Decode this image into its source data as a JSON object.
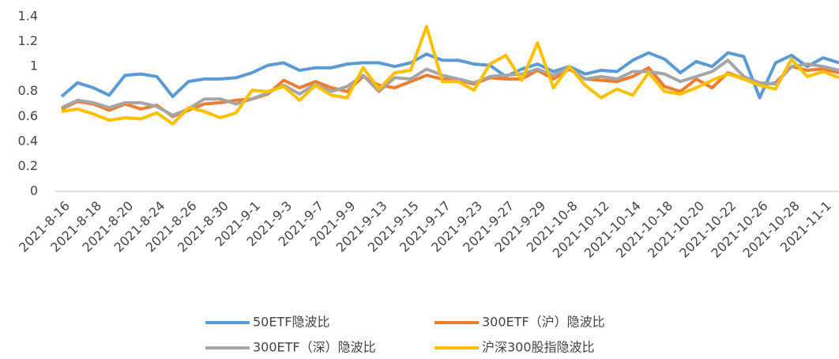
{
  "chart_data": {
    "type": "line",
    "categories": [
      "2021-8-16",
      null,
      "2021-8-18",
      null,
      "2021-8-20",
      null,
      "2021-8-24",
      null,
      "2021-8-26",
      null,
      "2021-8-30",
      null,
      "2021-9-1",
      null,
      "2021-9-3",
      null,
      "2021-9-7",
      null,
      "2021-9-9",
      null,
      "2021-9-13",
      null,
      "2021-9-15",
      null,
      "2021-9-17",
      null,
      "2021-9-23",
      null,
      "2021-9-27",
      null,
      "2021-9-29",
      null,
      "2021-10-8",
      null,
      "2021-10-12",
      null,
      "2021-10-14",
      null,
      "2021-10-18",
      null,
      "2021-10-20",
      null,
      "2021-10-22",
      null,
      "2021-10-26",
      null,
      "2021-10-28",
      null,
      "2021-11-1",
      null
    ],
    "series": [
      {
        "name": "50ETF隐波比",
        "color": "#5b9bd5",
        "values": [
          0.76,
          0.87,
          0.83,
          0.77,
          0.93,
          0.94,
          0.92,
          0.76,
          0.88,
          0.9,
          0.9,
          0.91,
          0.95,
          1.01,
          1.03,
          0.97,
          0.99,
          0.99,
          1.02,
          1.03,
          1.03,
          1.0,
          1.03,
          1.1,
          1.05,
          1.05,
          1.02,
          1.01,
          0.92,
          0.98,
          1.02,
          0.96,
          1.0,
          0.94,
          0.97,
          0.96,
          1.05,
          1.11,
          1.06,
          0.95,
          1.04,
          1.0,
          1.11,
          1.08,
          0.75,
          1.03,
          1.09,
          1.0,
          1.07,
          1.03
        ]
      },
      {
        "name": "300ETF（沪）隐波比",
        "color": "#ed7d31",
        "values": [
          0.66,
          0.72,
          0.7,
          0.65,
          0.7,
          0.66,
          0.69,
          0.6,
          0.65,
          0.7,
          0.71,
          0.73,
          0.74,
          0.78,
          0.89,
          0.83,
          0.88,
          0.83,
          0.8,
          0.92,
          0.85,
          0.83,
          0.88,
          0.93,
          0.9,
          0.89,
          0.86,
          0.91,
          0.9,
          0.9,
          0.97,
          0.9,
          0.98,
          0.9,
          0.89,
          0.88,
          0.92,
          0.99,
          0.84,
          0.8,
          0.9,
          0.83,
          0.95,
          0.9,
          0.85,
          0.87,
          1.0,
          0.97,
          0.98,
          0.95
        ]
      },
      {
        "name": "300ETF（深）隐波比",
        "color": "#a5a5a5",
        "values": [
          0.67,
          0.73,
          0.71,
          0.67,
          0.71,
          0.71,
          0.68,
          0.61,
          0.66,
          0.74,
          0.74,
          0.7,
          0.74,
          0.79,
          0.85,
          0.78,
          0.86,
          0.8,
          0.84,
          0.93,
          0.8,
          0.91,
          0.9,
          0.98,
          0.93,
          0.9,
          0.87,
          0.92,
          0.93,
          0.94,
          0.98,
          0.93,
          0.99,
          0.9,
          0.92,
          0.9,
          0.96,
          0.96,
          0.94,
          0.88,
          0.92,
          0.96,
          1.05,
          0.92,
          0.87,
          0.86,
          1.0,
          1.02,
          1.0,
          0.97
        ]
      },
      {
        "name": "沪深300股指隐波比",
        "color": "#ffc000",
        "values": [
          0.64,
          0.66,
          0.62,
          0.57,
          0.59,
          0.58,
          0.63,
          0.54,
          0.67,
          0.64,
          0.59,
          0.63,
          0.81,
          0.8,
          0.84,
          0.73,
          0.85,
          0.77,
          0.75,
          0.99,
          0.82,
          0.95,
          0.97,
          1.32,
          0.88,
          0.88,
          0.81,
          1.02,
          1.09,
          0.89,
          1.19,
          0.83,
          1.0,
          0.85,
          0.75,
          0.82,
          0.77,
          0.95,
          0.8,
          0.78,
          0.83,
          0.89,
          0.94,
          0.9,
          0.85,
          0.82,
          1.06,
          0.92,
          0.96,
          0.91
        ]
      }
    ],
    "ylim": [
      0,
      1.4
    ],
    "yticks": [
      0,
      {
        "value": 0.2,
        "label": "0.2"
      },
      {
        "value": 0.4,
        "label": "0.4"
      },
      {
        "value": 0.6,
        "label": "0.6"
      },
      {
        "value": 0.8,
        "label": "0.8"
      },
      1,
      {
        "value": 1.2,
        "label": "1.2"
      },
      {
        "value": 1.4,
        "label": "1.4"
      }
    ],
    "grid": false,
    "legend": "bottom"
  }
}
